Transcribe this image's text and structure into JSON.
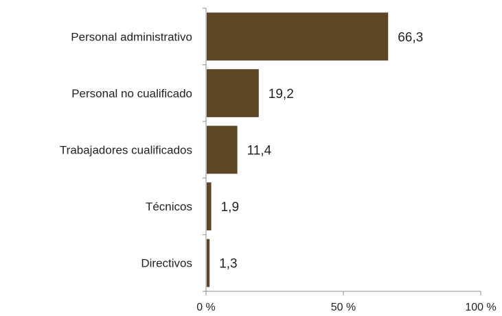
{
  "chart_data": {
    "type": "bar",
    "orientation": "horizontal",
    "categories": [
      "Personal administrativo",
      "Personal no cualificado",
      "Trabajadores cualificados",
      "Técnicos",
      "Directivos"
    ],
    "values": [
      66.3,
      19.2,
      11.4,
      1.9,
      1.3
    ],
    "value_labels": [
      "66,3",
      "19,2",
      "11,4",
      "1,9",
      "1,3"
    ],
    "xticks": [
      0,
      50,
      100
    ],
    "xtick_labels": [
      "0 %",
      "50 %",
      "100 %"
    ],
    "xlim": [
      0,
      100
    ],
    "title": "",
    "xlabel": "",
    "ylabel": "",
    "grid": false,
    "legend": "none",
    "bar_color": "#5c4623"
  }
}
